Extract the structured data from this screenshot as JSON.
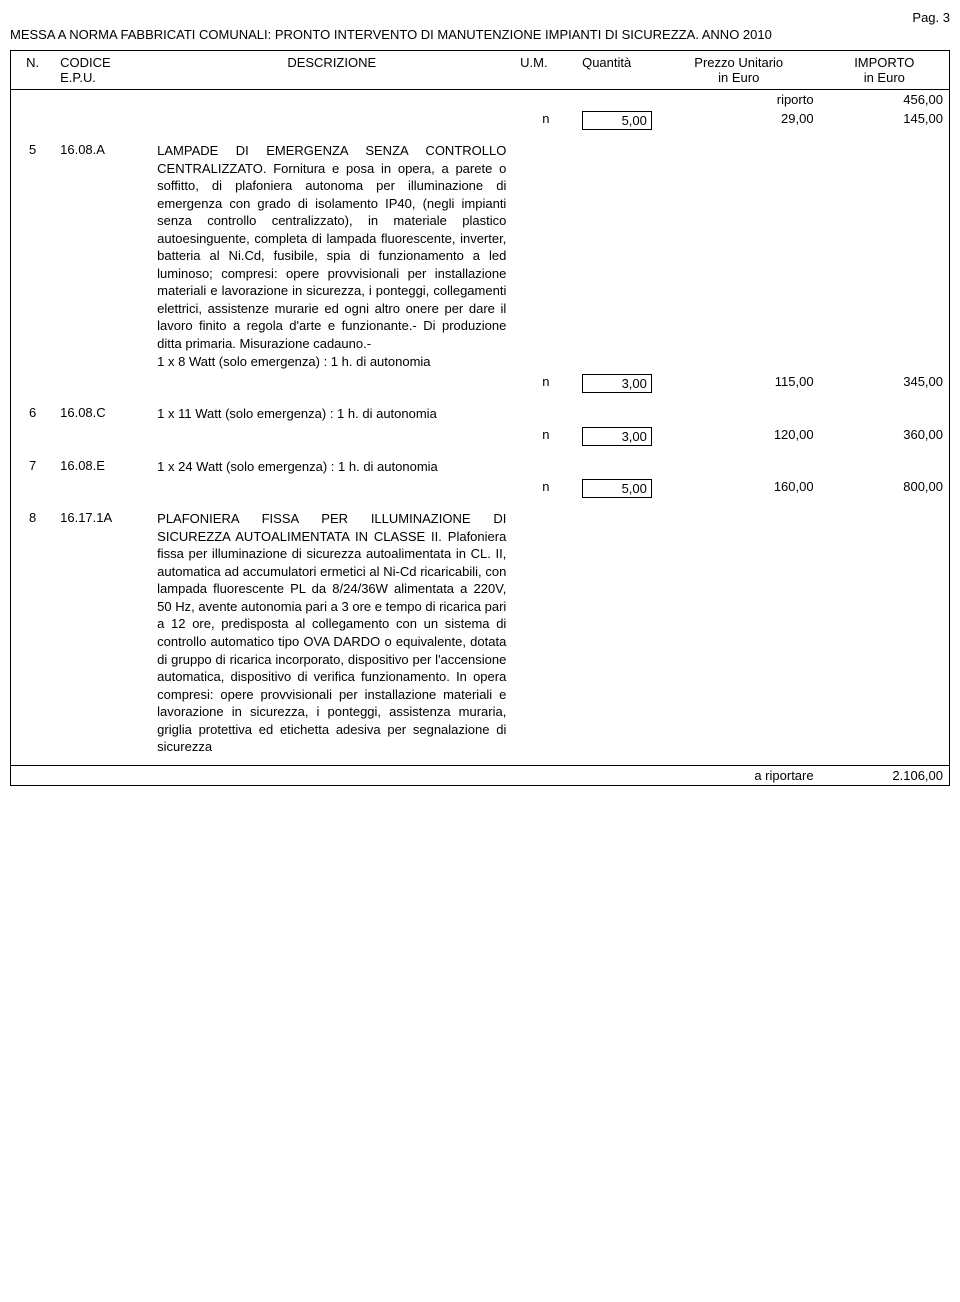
{
  "page_label": "Pag. 3",
  "doc_title": "MESSA A NORMA FABBRICATI COMUNALI: PRONTO INTERVENTO DI MANUTENZIONE IMPIANTI DI SICUREZZA. ANNO 2010",
  "headers": {
    "n": "N.",
    "code_line1": "CODICE",
    "code_line2": "E.P.U.",
    "desc": "DESCRIZIONE",
    "um": "U.M.",
    "qty": "Quantità",
    "price_line1": "Prezzo Unitario",
    "price_line2": "in Euro",
    "imp_line1": "IMPORTO",
    "imp_line2": "in Euro"
  },
  "riporto_label": "riporto",
  "riporto_value": "456,00",
  "first_line": {
    "um": "n",
    "qty": "5,00",
    "price": "29,00",
    "imp": "145,00"
  },
  "rows": [
    {
      "n": "5",
      "code": "16.08.A",
      "title": "LAMPADE DI EMERGENZA SENZA CONTROLLO CENTRALIZZATO.",
      "desc": "Fornitura e posa in opera, a parete o soffitto, di plafoniera autonoma per illuminazione di emergenza con grado di isolamento IP40, (negli impianti senza controllo centralizzato), in materiale plastico autoesinguente, completa di lampada fluorescente, inverter, batteria al Ni.Cd, fusibile, spia di funzionamento a led luminoso; compresi: opere provvisionali per installazione materiali e lavorazione in sicurezza, i ponteggi, collegamenti elettrici, assistenze murarie ed ogni altro onere per dare il lavoro finito a regola d'arte e funzionante.- Di produzione ditta primaria. Misurazione cadauno.-",
      "sub": "1 x 8 Watt (solo emergenza) : 1 h. di autonomia",
      "um": "n",
      "qty": "3,00",
      "price": "115,00",
      "imp": "345,00"
    },
    {
      "n": "6",
      "code": "16.08.C",
      "desc": "1 x 11 Watt (solo emergenza) : 1 h. di autonomia",
      "um": "n",
      "qty": "3,00",
      "price": "120,00",
      "imp": "360,00"
    },
    {
      "n": "7",
      "code": "16.08.E",
      "desc": "1 x 24 Watt (solo emergenza) : 1 h. di autonomia",
      "um": "n",
      "qty": "5,00",
      "price": "160,00",
      "imp": "800,00"
    },
    {
      "n": "8",
      "code": "16.17.1A",
      "title": "PLAFONIERA FISSA PER ILLUMINAZIONE DI SICUREZZA AUTOALIMENTATA IN CLASSE II.",
      "desc": "Plafoniera fissa per illuminazione di sicurezza autoalimentata in CL. II, automatica ad accumulatori ermetici al Ni-Cd ricaricabili, con lampada fluorescente PL da 8/24/36W alimentata a 220V, 50 Hz, avente autonomia pari a 3 ore e tempo di ricarica pari a 12 ore, predisposta al collegamento con un sistema di controllo automatico tipo OVA DARDO o equivalente, dotata di gruppo di ricarica incorporato, dispositivo per l'accensione automatica, dispositivo di verifica funzionamento. In opera compresi: opere provvisionali per installazione materiali e lavorazione in sicurezza, i ponteggi, assistenza muraria, griglia protettiva ed etichetta adesiva per segnalazione di sicurezza"
    }
  ],
  "footer_label": "a riportare",
  "footer_value": "2.106,00",
  "colors": {
    "text": "#000000",
    "background": "#ffffff",
    "border": "#000000"
  },
  "fonts": {
    "family": "Arial",
    "size_pt": 10
  }
}
